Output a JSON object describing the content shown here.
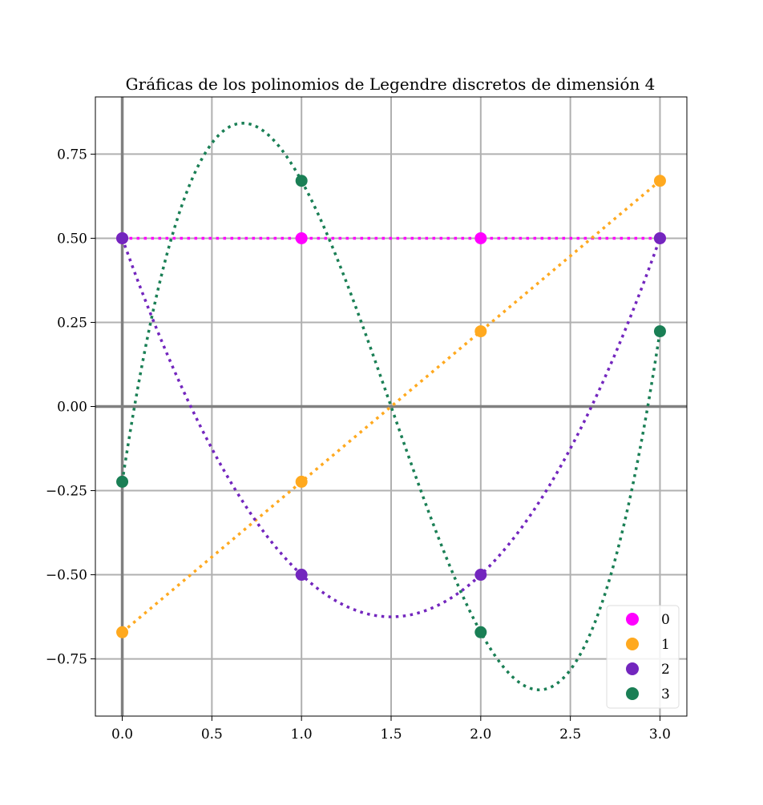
{
  "chart_data": {
    "type": "scatter",
    "title": "Gráficas de los polinomios de Legendre discretos de dimensión 4",
    "xlabel": "",
    "ylabel": "",
    "xlim": [
      -0.15,
      3.15
    ],
    "ylim": [
      -0.92,
      0.92
    ],
    "x_ticks": [
      0.0,
      0.5,
      1.0,
      1.5,
      2.0,
      2.5,
      3.0
    ],
    "x_tick_labels": [
      "0.0",
      "0.5",
      "1.0",
      "1.5",
      "2.0",
      "2.5",
      "3.0"
    ],
    "y_ticks": [
      0.75,
      0.5,
      0.25,
      0.0,
      -0.25,
      -0.5,
      -0.75
    ],
    "y_tick_labels": [
      "0.75",
      "0.50",
      "0.25",
      "0.00",
      "−0.25",
      "−0.50",
      "−0.75"
    ],
    "grid": true,
    "legend_position": "bottom-right",
    "x": [
      0,
      1,
      2,
      3
    ],
    "series": [
      {
        "name": "0",
        "color": "#ff00ff",
        "values": [
          0.5,
          0.5,
          0.5,
          0.5
        ],
        "curve": "constant"
      },
      {
        "name": "1",
        "color": "#ffa91f",
        "values": [
          -0.6708,
          -0.2236,
          0.2236,
          0.6708
        ],
        "curve": "linear"
      },
      {
        "name": "2",
        "color": "#7326be",
        "values": [
          0.5,
          -0.5,
          -0.5,
          0.5
        ],
        "curve": "quadratic"
      },
      {
        "name": "3",
        "color": "#1a7f55",
        "values": [
          -0.2236,
          0.6708,
          -0.6708,
          0.2236
        ],
        "curve": "cubic"
      }
    ]
  }
}
